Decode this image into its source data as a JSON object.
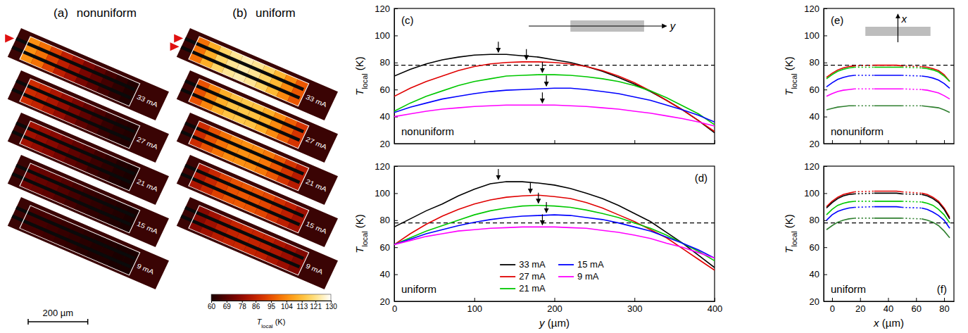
{
  "chart_data": [
    {
      "type": "heatmap",
      "title": "(a)",
      "subtitle": "nonuniform",
      "x": [
        20,
        60,
        100,
        140,
        180,
        220,
        260,
        300,
        340,
        380
      ],
      "xlim": [
        -40,
        500
      ],
      "layers": [
        {
          "name": "33 mA",
          "values": [
            105,
            100,
            92,
            85,
            80,
            74,
            70,
            66,
            63,
            61
          ]
        },
        {
          "name": "27 mA",
          "values": [
            88,
            86,
            82,
            78,
            74,
            70,
            67,
            64,
            62,
            61
          ]
        },
        {
          "name": "21 mA",
          "values": [
            80,
            78,
            76,
            73,
            70,
            68,
            65,
            63,
            61,
            60
          ]
        },
        {
          "name": "15 mA",
          "values": [
            72,
            71,
            70,
            68,
            66,
            64,
            63,
            62,
            61,
            60
          ]
        },
        {
          "name": "9 mA",
          "values": [
            66,
            66,
            65,
            64,
            63,
            62,
            61,
            61,
            60,
            60
          ]
        }
      ],
      "scale_bar": {
        "length": 200,
        "label": "200 µm"
      }
    },
    {
      "type": "heatmap",
      "title": "(b)",
      "subtitle": "uniform",
      "x": [
        20,
        60,
        100,
        140,
        180,
        220,
        260,
        300,
        340,
        380
      ],
      "xlim": [
        -40,
        500
      ],
      "layers": [
        {
          "name": "33 mA",
          "values": [
            100,
            110,
            118,
            122,
            124,
            122,
            118,
            112,
            104,
            96
          ]
        },
        {
          "name": "27 mA",
          "values": [
            95,
            103,
            110,
            114,
            115,
            114,
            110,
            104,
            97,
            90
          ]
        },
        {
          "name": "21 mA",
          "values": [
            88,
            95,
            100,
            104,
            105,
            104,
            101,
            96,
            90,
            84
          ]
        },
        {
          "name": "15 mA",
          "values": [
            82,
            87,
            92,
            95,
            96,
            95,
            93,
            89,
            85,
            80
          ]
        },
        {
          "name": "9 mA",
          "values": [
            76,
            80,
            84,
            86,
            87,
            86,
            85,
            82,
            79,
            75
          ]
        }
      ],
      "colorbar": {
        "range": [
          60,
          130
        ],
        "ticks": [
          60,
          69,
          78,
          86,
          95,
          104,
          113,
          121,
          130
        ],
        "label": {
          "main": "T",
          "sub": "local",
          "unit": " (K)"
        }
      }
    },
    {
      "type": "line",
      "title": "(c)",
      "subtitle": "nonuniform",
      "inset_label": "y",
      "tick_labels": "y",
      "x": [
        0,
        20,
        40,
        60,
        80,
        100,
        120,
        140,
        160,
        180,
        200,
        220,
        240,
        260,
        280,
        300,
        320,
        340,
        360,
        380,
        400
      ],
      "xlim": [
        0,
        400
      ],
      "xticks": [
        0,
        100,
        200,
        300,
        400
      ],
      "ylim": [
        20,
        120
      ],
      "yticks": [
        20,
        40,
        60,
        80,
        100,
        120
      ],
      "ylabel": {
        "main": "T",
        "sub": "local",
        "unit": " (K)"
      },
      "hline": 78,
      "series": [
        {
          "color": "#000000",
          "values": [
            70,
            75,
            79,
            82,
            84,
            85.5,
            86,
            86,
            85,
            84,
            82,
            80,
            77,
            73.5,
            69,
            64,
            58.5,
            52,
            45,
            37,
            28
          ],
          "peak": {
            "x": 130,
            "y": 86
          }
        },
        {
          "color": "#e00000",
          "values": [
            55,
            61,
            66,
            70,
            74,
            77,
            79,
            80,
            80.5,
            80.5,
            80,
            79,
            77,
            74,
            70,
            65,
            59,
            52,
            45,
            37,
            29
          ],
          "peak": {
            "x": 165,
            "y": 80.5
          }
        },
        {
          "color": "#00c800",
          "values": [
            44,
            50,
            55,
            59,
            63,
            66,
            68,
            70,
            70.5,
            71,
            71,
            70.5,
            69.5,
            68,
            66,
            63,
            59,
            54,
            48,
            42,
            34
          ],
          "peak": {
            "x": 185,
            "y": 71
          }
        },
        {
          "color": "#0000ff",
          "values": [
            43,
            47,
            50,
            53,
            55,
            57,
            58.5,
            59.5,
            60,
            60.5,
            61,
            61,
            60,
            58.5,
            57,
            54.5,
            52,
            48.5,
            45,
            41,
            36
          ],
          "peak": {
            "x": 190,
            "y": 61
          }
        },
        {
          "color": "#ff00ff",
          "values": [
            40,
            42,
            44,
            45.5,
            46.5,
            47.5,
            48,
            48.5,
            48.5,
            48.5,
            48.5,
            48,
            47.5,
            46.5,
            45.5,
            44,
            42.5,
            40.5,
            38.5,
            36,
            33
          ],
          "peak": {
            "x": 185,
            "y": 48.5
          }
        }
      ]
    },
    {
      "type": "line",
      "title": "(d)",
      "subtitle": "uniform",
      "legend": "bottom",
      "x": [
        0,
        20,
        40,
        60,
        80,
        100,
        120,
        140,
        160,
        180,
        200,
        220,
        240,
        260,
        280,
        300,
        320,
        340,
        360,
        380,
        400
      ],
      "xlim": [
        0,
        400
      ],
      "xticks": [
        0,
        100,
        200,
        300,
        400
      ],
      "ylim": [
        20,
        120
      ],
      "yticks": [
        20,
        40,
        60,
        80,
        100,
        120
      ],
      "xlabel": {
        "main": "y",
        "unit": " (µm)"
      },
      "ylabel": {
        "main": "T",
        "sub": "local",
        "unit": " (K)"
      },
      "hline": 78,
      "series": [
        {
          "name": "33 mA",
          "color": "#000000",
          "values": [
            75,
            81,
            87,
            92,
            98,
            103,
            107,
            108.5,
            108.5,
            107.5,
            106,
            103.5,
            100,
            96,
            91,
            85,
            79,
            71,
            63,
            54,
            45
          ],
          "peak": {
            "x": 130,
            "y": 108.5
          }
        },
        {
          "name": "27 mA",
          "color": "#e00000",
          "values": [
            62,
            70,
            77,
            83,
            88,
            92,
            95,
            97,
            98,
            98.5,
            97.5,
            96,
            93,
            89,
            84,
            79,
            73,
            67,
            59,
            51,
            43
          ],
          "peak": {
            "x": 170,
            "y": 98.5
          }
        },
        {
          "name": "21 mA",
          "color": "#00c800",
          "values": [
            62,
            67,
            72,
            76,
            80,
            84,
            87,
            89,
            90.5,
            91,
            90.5,
            89.5,
            87.5,
            85,
            82,
            78,
            74,
            69,
            63,
            57,
            50
          ],
          "peak": {
            "x": 180,
            "y": 91
          }
        },
        {
          "name": "15 mA",
          "color": "#0000ff",
          "values": [
            62,
            66,
            70,
            73,
            76,
            78.5,
            80.5,
            82,
            83,
            83.5,
            84,
            83.5,
            82,
            80.5,
            78,
            75,
            72,
            67.5,
            63,
            58,
            52
          ],
          "peak": {
            "x": 190,
            "y": 84
          }
        },
        {
          "name": "9 mA",
          "color": "#ff00ff",
          "values": [
            62,
            65,
            68,
            70,
            72,
            73,
            74,
            74.5,
            75,
            75,
            75,
            74.5,
            74,
            72.5,
            71,
            69,
            66.5,
            63,
            60,
            56,
            52
          ],
          "peak": {
            "x": 185,
            "y": 75
          }
        }
      ]
    },
    {
      "type": "line",
      "title": "(e)",
      "subtitle": "nonuniform",
      "inset_label": "x",
      "tick_labels": "y",
      "x": [
        -4,
        0,
        4,
        8,
        12,
        16,
        23,
        30,
        34,
        38,
        42,
        46,
        50,
        57,
        64,
        68,
        72,
        76,
        80,
        84
      ],
      "xlim": [
        -6,
        87
      ],
      "xticks": [
        0,
        20,
        40,
        60,
        80
      ],
      "ylim": [
        20,
        120
      ],
      "yticks": [
        20,
        40,
        60,
        80,
        100,
        120
      ],
      "ylabel": {
        "main": "T",
        "sub": "local",
        "unit": " (K)"
      },
      "hline": 78,
      "series": [
        {
          "color": "#e00000",
          "values": [
            69,
            72,
            74.5,
            76,
            77,
            77.5,
            null,
            78,
            78,
            78,
            78,
            78,
            77.5,
            null,
            77,
            76.5,
            75.5,
            74,
            71,
            66
          ]
        },
        {
          "color": "#00c800",
          "values": [
            68,
            71,
            73.5,
            75,
            76,
            76.5,
            null,
            76.5,
            76.5,
            76.5,
            76.5,
            76.5,
            76.5,
            null,
            76,
            75.5,
            74.5,
            73,
            70,
            66
          ]
        },
        {
          "color": "#0000ff",
          "values": [
            62,
            65,
            67.5,
            69,
            70,
            70.5,
            null,
            70.5,
            70.5,
            70.5,
            70.5,
            70.5,
            70.5,
            null,
            70,
            69.5,
            68.5,
            67,
            64.5,
            61
          ]
        },
        {
          "color": "#ff00ff",
          "values": [
            55,
            57,
            58.5,
            59.5,
            60,
            60.5,
            null,
            60.5,
            60.5,
            60.5,
            60.5,
            60.5,
            60.5,
            null,
            60,
            59.5,
            58.5,
            57.5,
            55.5,
            53
          ]
        },
        {
          "color": "#2f7f2f",
          "values": [
            45,
            46,
            47,
            47.5,
            48,
            48,
            null,
            48,
            48,
            48,
            48,
            48,
            48,
            null,
            48,
            47.5,
            47,
            46.5,
            45,
            43
          ]
        }
      ]
    },
    {
      "type": "line",
      "title": "(f)",
      "subtitle": "uniform",
      "x": [
        -4,
        0,
        4,
        8,
        12,
        16,
        23,
        30,
        34,
        38,
        42,
        46,
        50,
        57,
        64,
        68,
        72,
        76,
        80,
        84
      ],
      "xlim": [
        -6,
        87
      ],
      "xticks": [
        0,
        20,
        40,
        60,
        80
      ],
      "ylim": [
        20,
        120
      ],
      "yticks": [
        20,
        40,
        60,
        80,
        100,
        120
      ],
      "xlabel": {
        "main": "x",
        "unit": " (µm)"
      },
      "ylabel": {
        "main": "T",
        "sub": "local",
        "unit": " (K)"
      },
      "hline": 78,
      "series": [
        {
          "color": "#e00000",
          "values": [
            90,
            94,
            97,
            99,
            100,
            101,
            null,
            101.5,
            101.5,
            101.5,
            101.5,
            101.5,
            101,
            null,
            100,
            99,
            97,
            94,
            89,
            82
          ]
        },
        {
          "color": "#000000",
          "values": [
            89,
            93,
            96,
            98,
            99,
            99.5,
            null,
            100,
            100,
            100,
            100,
            100,
            99.5,
            null,
            99,
            98,
            96,
            93,
            88,
            81
          ]
        },
        {
          "color": "#00c800",
          "values": [
            84,
            88,
            91,
            92.5,
            93.5,
            94,
            null,
            94,
            94,
            94,
            94,
            94,
            94,
            null,
            93.5,
            92.5,
            91,
            88,
            84,
            78
          ]
        },
        {
          "color": "#0000ff",
          "values": [
            80,
            84,
            86.5,
            88,
            89,
            89.5,
            null,
            90,
            90,
            90,
            90,
            90,
            89.5,
            null,
            89,
            88,
            86,
            83.5,
            80,
            74
          ]
        },
        {
          "color": "#2f7f2f",
          "values": [
            73,
            76,
            78.5,
            80,
            81,
            81.5,
            null,
            81.5,
            81.5,
            81.5,
            81.5,
            81.5,
            81.5,
            null,
            81,
            80,
            78.5,
            76,
            72,
            67
          ]
        }
      ]
    }
  ]
}
